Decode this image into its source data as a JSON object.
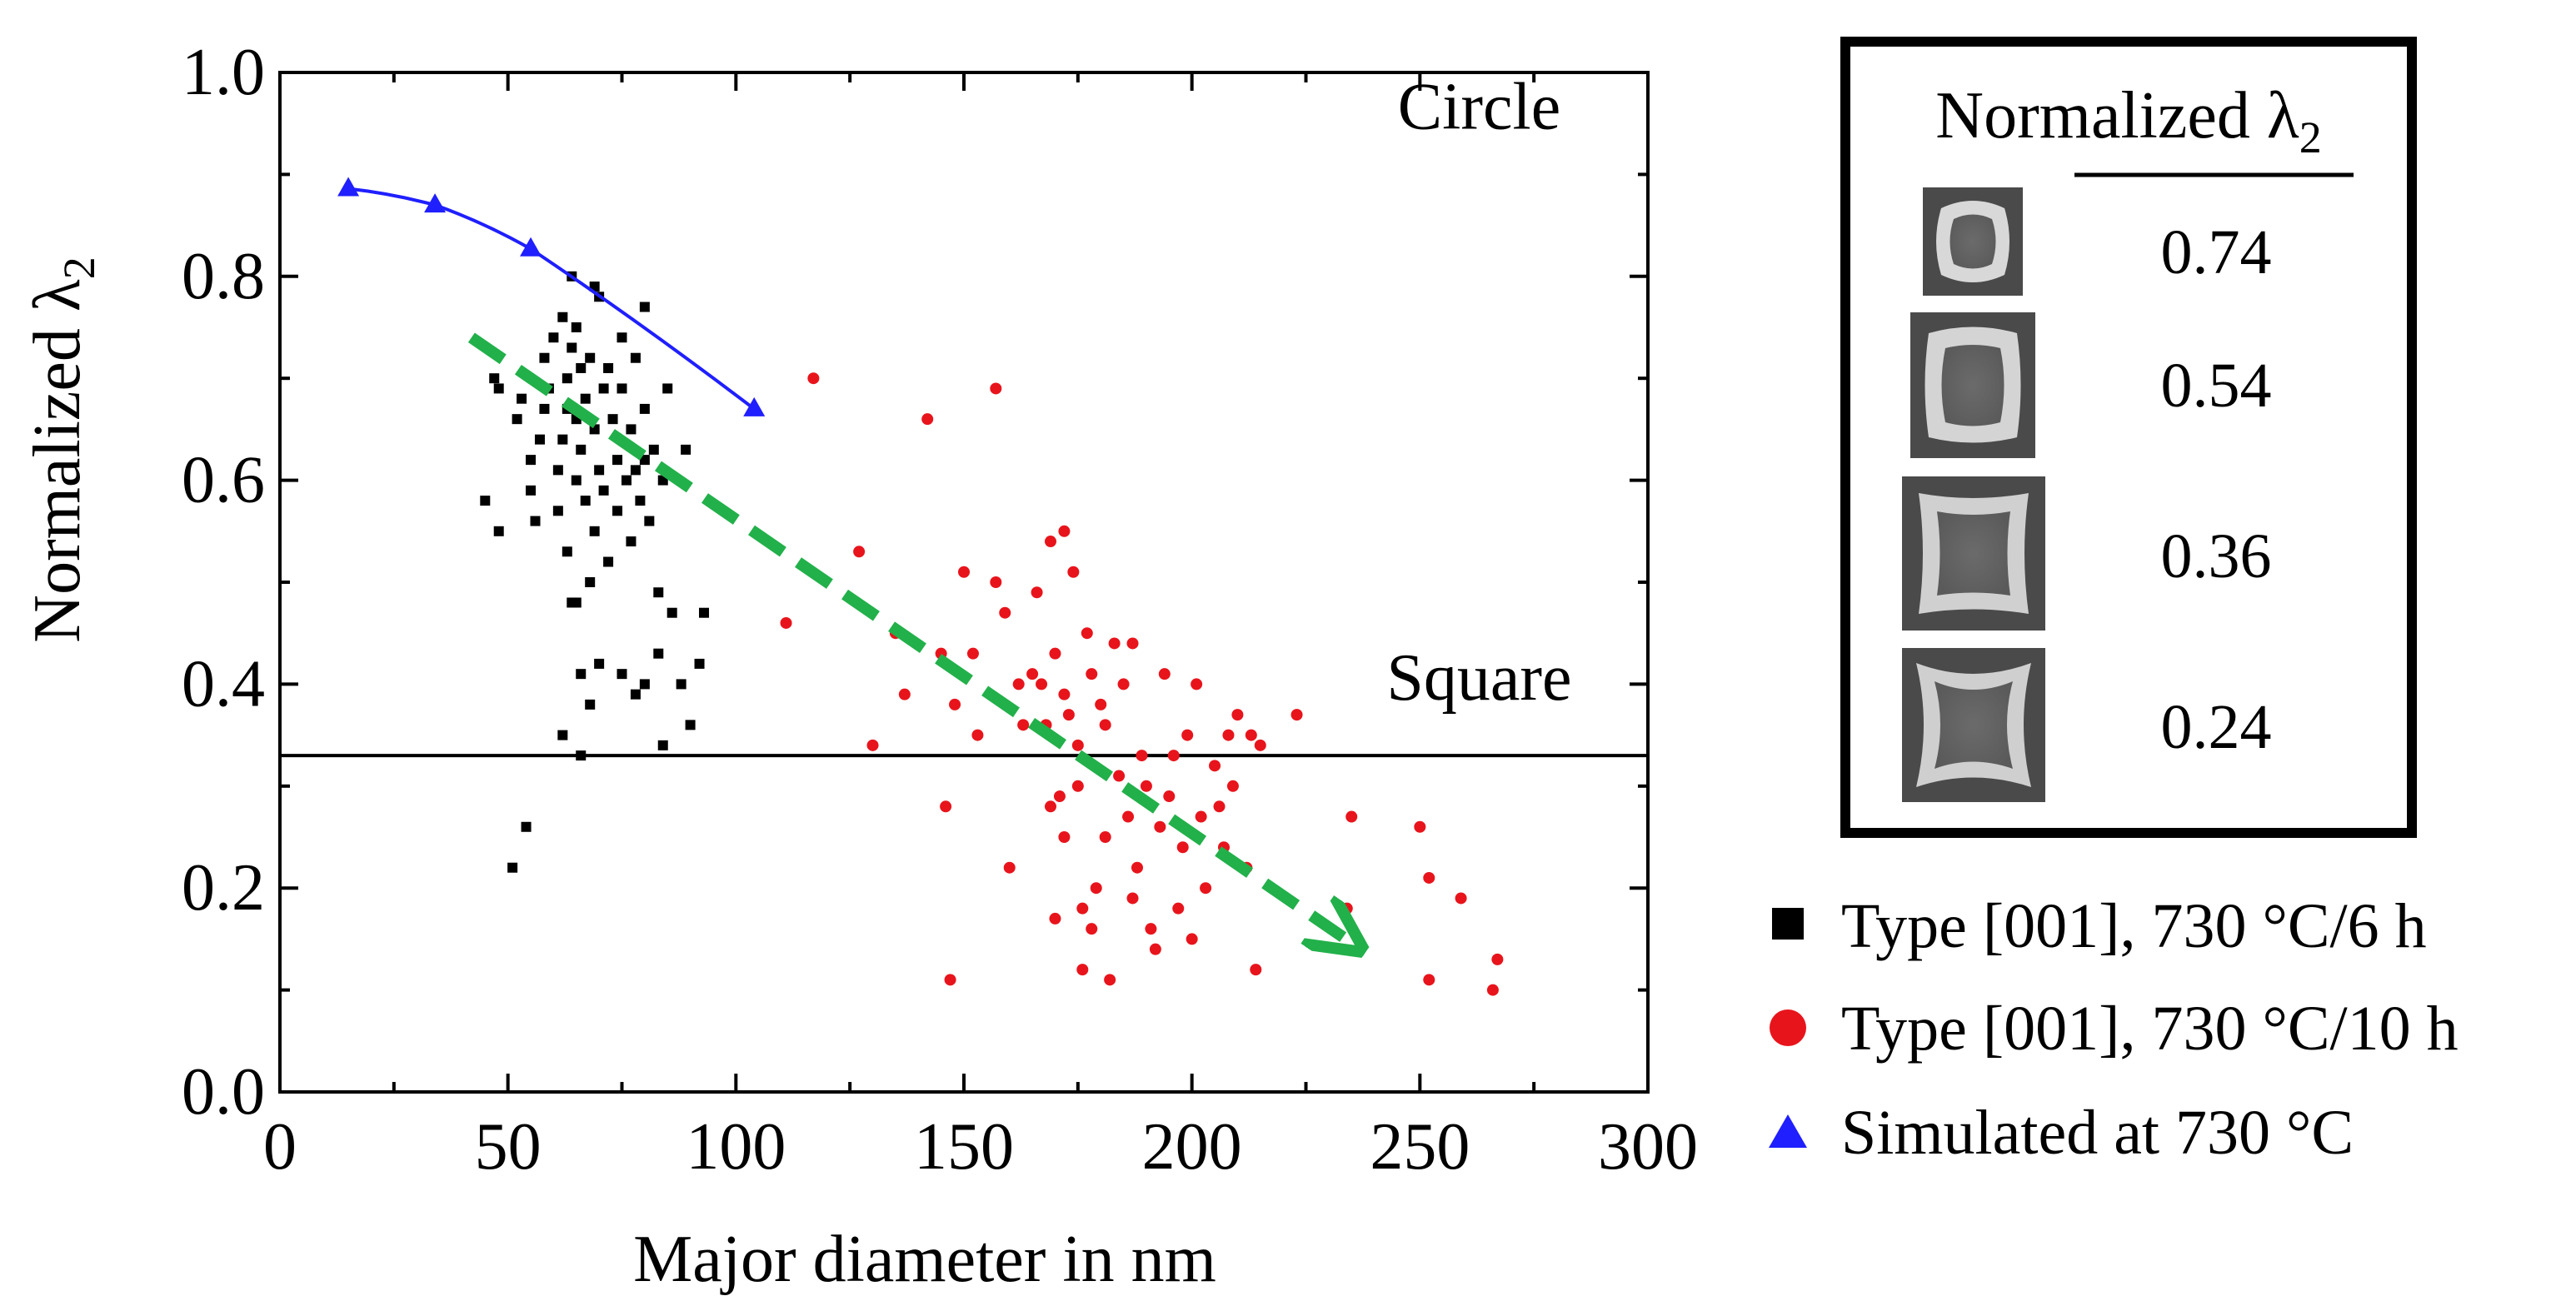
{
  "chart_data": {
    "type": "scatter",
    "xlabel": "Major diameter in nm",
    "ylabel_main": "Normalized λ",
    "ylabel_sub": "2",
    "xlim": [
      0,
      300
    ],
    "ylim": [
      0,
      1.0
    ],
    "xticks": [
      0,
      50,
      100,
      150,
      200,
      250,
      300
    ],
    "xtick_labels": [
      "0",
      "50",
      "100",
      "150",
      "200",
      "250",
      "300"
    ],
    "yticks": [
      0,
      0.2,
      0.4,
      0.6,
      0.8,
      1.0
    ],
    "ytick_labels": [
      "0.0",
      "0.2",
      "0.4",
      "0.6",
      "0.8",
      "1.0"
    ],
    "annotations": [
      {
        "text": "Circle",
        "x": 263,
        "y": 0.945
      },
      {
        "text": "Square",
        "x": 263,
        "y": 0.385
      }
    ],
    "reference_line": {
      "y": 0.33,
      "label": "Square"
    },
    "trend_arrow": {
      "from": [
        42,
        0.74
      ],
      "to": [
        237,
        0.14
      ],
      "color": "#22b04a"
    },
    "series": [
      {
        "name": "Type [001], 730 °C/6 h",
        "marker": "square",
        "color": "#000000",
        "points": [
          [
            45,
            0.58
          ],
          [
            47,
            0.7
          ],
          [
            48,
            0.69
          ],
          [
            48,
            0.55
          ],
          [
            52,
            0.66
          ],
          [
            53,
            0.68
          ],
          [
            55,
            0.62
          ],
          [
            55,
            0.59
          ],
          [
            56,
            0.56
          ],
          [
            57,
            0.64
          ],
          [
            58,
            0.67
          ],
          [
            58,
            0.72
          ],
          [
            59,
            0.69
          ],
          [
            60,
            0.74
          ],
          [
            61,
            0.57
          ],
          [
            61,
            0.61
          ],
          [
            62,
            0.76
          ],
          [
            62,
            0.64
          ],
          [
            63,
            0.7
          ],
          [
            63,
            0.67
          ],
          [
            63,
            0.53
          ],
          [
            64,
            0.73
          ],
          [
            64,
            0.48
          ],
          [
            65,
            0.66
          ],
          [
            65,
            0.6
          ],
          [
            65,
            0.75
          ],
          [
            66,
            0.71
          ],
          [
            66,
            0.63
          ],
          [
            67,
            0.68
          ],
          [
            67,
            0.58
          ],
          [
            68,
            0.72
          ],
          [
            68,
            0.5
          ],
          [
            69,
            0.65
          ],
          [
            69,
            0.55
          ],
          [
            70,
            0.78
          ],
          [
            70,
            0.61
          ],
          [
            71,
            0.69
          ],
          [
            71,
            0.59
          ],
          [
            72,
            0.71
          ],
          [
            72,
            0.52
          ],
          [
            73,
            0.66
          ],
          [
            74,
            0.62
          ],
          [
            74,
            0.57
          ],
          [
            75,
            0.74
          ],
          [
            75,
            0.69
          ],
          [
            76,
            0.6
          ],
          [
            77,
            0.65
          ],
          [
            77,
            0.54
          ],
          [
            78,
            0.72
          ],
          [
            78,
            0.61
          ],
          [
            79,
            0.58
          ],
          [
            80,
            0.67
          ],
          [
            80,
            0.62
          ],
          [
            81,
            0.56
          ],
          [
            82,
            0.63
          ],
          [
            83,
            0.49
          ],
          [
            84,
            0.6
          ],
          [
            85,
            0.69
          ],
          [
            62,
            0.35
          ],
          [
            65,
            0.48
          ],
          [
            66,
            0.41
          ],
          [
            68,
            0.38
          ],
          [
            70,
            0.42
          ],
          [
            75,
            0.41
          ],
          [
            78,
            0.39
          ],
          [
            80,
            0.4
          ],
          [
            83,
            0.43
          ],
          [
            84,
            0.34
          ],
          [
            86,
            0.47
          ],
          [
            88,
            0.4
          ],
          [
            89,
            0.63
          ],
          [
            90,
            0.36
          ],
          [
            92,
            0.42
          ],
          [
            93,
            0.47
          ],
          [
            66,
            0.33
          ],
          [
            54,
            0.26
          ],
          [
            51,
            0.22
          ],
          [
            69,
            0.79
          ],
          [
            80,
            0.77
          ],
          [
            64,
            0.8
          ]
        ]
      },
      {
        "name": "Type [001], 730 °C/10 h",
        "marker": "circle",
        "color": "#e8141c",
        "points": [
          [
            111,
            0.46
          ],
          [
            117,
            0.7
          ],
          [
            127,
            0.53
          ],
          [
            130,
            0.34
          ],
          [
            135,
            0.45
          ],
          [
            137,
            0.39
          ],
          [
            142,
            0.66
          ],
          [
            145,
            0.43
          ],
          [
            146,
            0.28
          ],
          [
            147,
            0.11
          ],
          [
            148,
            0.38
          ],
          [
            150,
            0.51
          ],
          [
            152,
            0.43
          ],
          [
            153,
            0.35
          ],
          [
            157,
            0.69
          ],
          [
            157,
            0.5
          ],
          [
            159,
            0.47
          ],
          [
            160,
            0.22
          ],
          [
            162,
            0.4
          ],
          [
            163,
            0.36
          ],
          [
            165,
            0.41
          ],
          [
            166,
            0.49
          ],
          [
            167,
            0.4
          ],
          [
            168,
            0.36
          ],
          [
            169,
            0.28
          ],
          [
            170,
            0.43
          ],
          [
            170,
            0.17
          ],
          [
            171,
            0.29
          ],
          [
            172,
            0.25
          ],
          [
            172,
            0.39
          ],
          [
            173,
            0.37
          ],
          [
            174,
            0.51
          ],
          [
            175,
            0.34
          ],
          [
            175,
            0.3
          ],
          [
            176,
            0.18
          ],
          [
            176,
            0.12
          ],
          [
            177,
            0.45
          ],
          [
            178,
            0.41
          ],
          [
            178,
            0.16
          ],
          [
            179,
            0.2
          ],
          [
            180,
            0.38
          ],
          [
            181,
            0.36
          ],
          [
            181,
            0.25
          ],
          [
            182,
            0.11
          ],
          [
            183,
            0.44
          ],
          [
            184,
            0.31
          ],
          [
            185,
            0.4
          ],
          [
            186,
            0.27
          ],
          [
            187,
            0.19
          ],
          [
            188,
            0.22
          ],
          [
            189,
            0.33
          ],
          [
            190,
            0.3
          ],
          [
            191,
            0.16
          ],
          [
            192,
            0.14
          ],
          [
            193,
            0.26
          ],
          [
            194,
            0.41
          ],
          [
            195,
            0.29
          ],
          [
            196,
            0.33
          ],
          [
            197,
            0.18
          ],
          [
            198,
            0.24
          ],
          [
            199,
            0.35
          ],
          [
            200,
            0.15
          ],
          [
            201,
            0.4
          ],
          [
            202,
            0.27
          ],
          [
            203,
            0.2
          ],
          [
            205,
            0.32
          ],
          [
            206,
            0.28
          ],
          [
            207,
            0.24
          ],
          [
            208,
            0.35
          ],
          [
            209,
            0.3
          ],
          [
            210,
            0.37
          ],
          [
            212,
            0.22
          ],
          [
            213,
            0.35
          ],
          [
            214,
            0.12
          ],
          [
            215,
            0.34
          ],
          [
            223,
            0.37
          ],
          [
            234,
            0.18
          ],
          [
            235,
            0.27
          ],
          [
            250,
            0.26
          ],
          [
            252,
            0.11
          ],
          [
            252,
            0.21
          ],
          [
            259,
            0.19
          ],
          [
            266,
            0.1
          ],
          [
            267,
            0.13
          ],
          [
            169,
            0.54
          ],
          [
            172,
            0.55
          ],
          [
            187,
            0.44
          ]
        ]
      },
      {
        "name": "Simulated at 730 °C",
        "marker": "triangle",
        "color": "#1f1fff",
        "line": true,
        "points": [
          [
            15,
            0.886
          ],
          [
            34,
            0.87
          ],
          [
            55,
            0.827
          ],
          [
            104,
            0.67
          ]
        ]
      }
    ],
    "legend_location": "bottom-right",
    "inset": {
      "title_main": "Normalized λ",
      "title_sub": "2",
      "rows": [
        {
          "value": "0.74",
          "shape": "circle-like"
        },
        {
          "value": "0.54",
          "shape": "rounded-square"
        },
        {
          "value": "0.36",
          "shape": "square"
        },
        {
          "value": "0.24",
          "shape": "concave-square"
        }
      ]
    }
  }
}
